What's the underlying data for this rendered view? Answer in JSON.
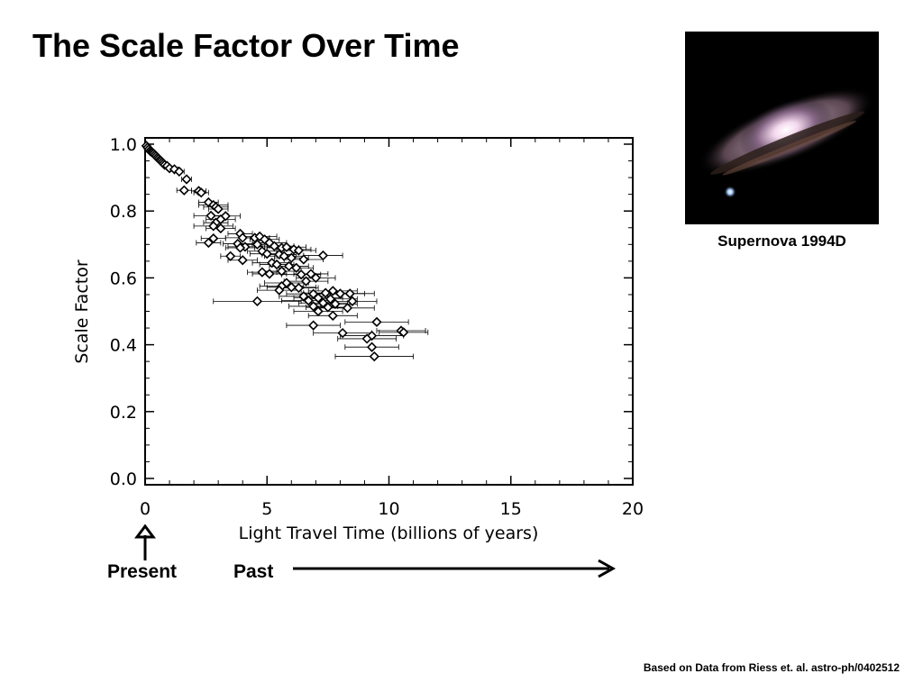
{
  "slide": {
    "title": "The Scale Factor Over Time",
    "photo_caption": "Supernova 1994D",
    "present_label": "Present",
    "past_label": "Past",
    "footer": "Based on Data from Riess et. al.  astro-ph/0402512"
  },
  "chart_data": {
    "type": "scatter",
    "title": "",
    "xlabel": "Light Travel Time (billions of years)",
    "ylabel": "Scale Factor",
    "xlim": [
      0,
      20
    ],
    "ylim": [
      0,
      1.0
    ],
    "x_ticks": [
      "0",
      "5",
      "10",
      "15",
      "20"
    ],
    "y_ticks": [
      "0.0",
      "0.2",
      "0.4",
      "0.6",
      "0.8",
      "1.0"
    ],
    "grid": false,
    "marker": "diamond",
    "points": [
      {
        "x": 0.05,
        "y": 0.995,
        "xerr": 0.02
      },
      {
        "x": 0.1,
        "y": 0.99,
        "xerr": 0.03
      },
      {
        "x": 0.15,
        "y": 0.985,
        "xerr": 0.03
      },
      {
        "x": 0.2,
        "y": 0.98,
        "xerr": 0.04
      },
      {
        "x": 0.25,
        "y": 0.977,
        "xerr": 0.04
      },
      {
        "x": 0.3,
        "y": 0.975,
        "xerr": 0.05
      },
      {
        "x": 0.35,
        "y": 0.972,
        "xerr": 0.05
      },
      {
        "x": 0.4,
        "y": 0.968,
        "xerr": 0.05
      },
      {
        "x": 0.45,
        "y": 0.964,
        "xerr": 0.06
      },
      {
        "x": 0.5,
        "y": 0.96,
        "xerr": 0.06
      },
      {
        "x": 0.55,
        "y": 0.957,
        "xerr": 0.06
      },
      {
        "x": 0.6,
        "y": 0.953,
        "xerr": 0.07
      },
      {
        "x": 0.65,
        "y": 0.95,
        "xerr": 0.07
      },
      {
        "x": 0.7,
        "y": 0.946,
        "xerr": 0.08
      },
      {
        "x": 0.75,
        "y": 0.942,
        "xerr": 0.08
      },
      {
        "x": 0.8,
        "y": 0.938,
        "xerr": 0.09
      },
      {
        "x": 0.9,
        "y": 0.935,
        "xerr": 0.1
      },
      {
        "x": 1.0,
        "y": 0.928,
        "xerr": 0.1
      },
      {
        "x": 1.2,
        "y": 0.925,
        "xerr": 0.15
      },
      {
        "x": 1.4,
        "y": 0.918,
        "xerr": 0.2
      },
      {
        "x": 1.7,
        "y": 0.895,
        "xerr": 0.2
      },
      {
        "x": 1.6,
        "y": 0.862,
        "xerr": 0.3
      },
      {
        "x": 2.2,
        "y": 0.86,
        "xerr": 0.3
      },
      {
        "x": 2.3,
        "y": 0.855,
        "xerr": 0.3
      },
      {
        "x": 2.6,
        "y": 0.826,
        "xerr": 0.4
      },
      {
        "x": 2.8,
        "y": 0.818,
        "xerr": 0.6
      },
      {
        "x": 2.9,
        "y": 0.812,
        "xerr": 0.5
      },
      {
        "x": 3.0,
        "y": 0.806,
        "xerr": 0.4
      },
      {
        "x": 2.7,
        "y": 0.786,
        "xerr": 0.7
      },
      {
        "x": 3.3,
        "y": 0.785,
        "xerr": 0.6
      },
      {
        "x": 3.1,
        "y": 0.775,
        "xerr": 0.6
      },
      {
        "x": 2.9,
        "y": 0.765,
        "xerr": 0.5
      },
      {
        "x": 2.8,
        "y": 0.755,
        "xerr": 0.8
      },
      {
        "x": 3.1,
        "y": 0.748,
        "xerr": 0.6
      },
      {
        "x": 3.9,
        "y": 0.732,
        "xerr": 0.5
      },
      {
        "x": 4.0,
        "y": 0.72,
        "xerr": 0.7
      },
      {
        "x": 2.8,
        "y": 0.718,
        "xerr": 0.5
      },
      {
        "x": 2.6,
        "y": 0.705,
        "xerr": 0.5
      },
      {
        "x": 3.8,
        "y": 0.702,
        "xerr": 0.6
      },
      {
        "x": 4.1,
        "y": 0.693,
        "xerr": 0.7
      },
      {
        "x": 3.9,
        "y": 0.69,
        "xerr": 0.6
      },
      {
        "x": 4.5,
        "y": 0.72,
        "xerr": 0.6
      },
      {
        "x": 4.7,
        "y": 0.724,
        "xerr": 0.7
      },
      {
        "x": 4.9,
        "y": 0.715,
        "xerr": 0.6
      },
      {
        "x": 5.1,
        "y": 0.705,
        "xerr": 0.7
      },
      {
        "x": 4.6,
        "y": 0.7,
        "xerr": 0.7
      },
      {
        "x": 5.3,
        "y": 0.695,
        "xerr": 0.8
      },
      {
        "x": 5.6,
        "y": 0.69,
        "xerr": 0.7
      },
      {
        "x": 5.8,
        "y": 0.692,
        "xerr": 0.8
      },
      {
        "x": 6.1,
        "y": 0.685,
        "xerr": 0.7
      },
      {
        "x": 6.3,
        "y": 0.682,
        "xerr": 0.7
      },
      {
        "x": 4.8,
        "y": 0.68,
        "xerr": 0.6
      },
      {
        "x": 5.0,
        "y": 0.672,
        "xerr": 0.7
      },
      {
        "x": 5.5,
        "y": 0.67,
        "xerr": 0.7
      },
      {
        "x": 5.7,
        "y": 0.665,
        "xerr": 0.8
      },
      {
        "x": 6.0,
        "y": 0.66,
        "xerr": 0.7
      },
      {
        "x": 6.5,
        "y": 0.655,
        "xerr": 0.8
      },
      {
        "x": 7.3,
        "y": 0.667,
        "xerr": 0.8
      },
      {
        "x": 3.5,
        "y": 0.665,
        "xerr": 0.4
      },
      {
        "x": 4.0,
        "y": 0.653,
        "xerr": 0.6
      },
      {
        "x": 5.2,
        "y": 0.645,
        "xerr": 0.8
      },
      {
        "x": 5.4,
        "y": 0.64,
        "xerr": 0.7
      },
      {
        "x": 5.9,
        "y": 0.635,
        "xerr": 0.8
      },
      {
        "x": 6.2,
        "y": 0.63,
        "xerr": 0.7
      },
      {
        "x": 5.6,
        "y": 0.62,
        "xerr": 0.8
      },
      {
        "x": 4.8,
        "y": 0.617,
        "xerr": 0.6
      },
      {
        "x": 5.1,
        "y": 0.612,
        "xerr": 0.7
      },
      {
        "x": 6.4,
        "y": 0.61,
        "xerr": 0.8
      },
      {
        "x": 6.8,
        "y": 0.612,
        "xerr": 0.7
      },
      {
        "x": 7.0,
        "y": 0.6,
        "xerr": 0.8
      },
      {
        "x": 6.6,
        "y": 0.59,
        "xerr": 0.9
      },
      {
        "x": 5.8,
        "y": 0.585,
        "xerr": 0.9
      },
      {
        "x": 5.6,
        "y": 0.575,
        "xerr": 0.9
      },
      {
        "x": 6.3,
        "y": 0.57,
        "xerr": 0.8
      },
      {
        "x": 5.5,
        "y": 0.563,
        "xerr": 0.9
      },
      {
        "x": 6.0,
        "y": 0.572,
        "xerr": 1.0
      },
      {
        "x": 7.7,
        "y": 0.561,
        "xerr": 1.0
      },
      {
        "x": 7.4,
        "y": 0.555,
        "xerr": 0.9
      },
      {
        "x": 6.9,
        "y": 0.552,
        "xerr": 1.1
      },
      {
        "x": 8.0,
        "y": 0.553,
        "xerr": 1.0
      },
      {
        "x": 8.4,
        "y": 0.553,
        "xerr": 1.0
      },
      {
        "x": 6.5,
        "y": 0.545,
        "xerr": 1.0
      },
      {
        "x": 7.1,
        "y": 0.54,
        "xerr": 1.0
      },
      {
        "x": 7.6,
        "y": 0.537,
        "xerr": 1.1
      },
      {
        "x": 8.5,
        "y": 0.53,
        "xerr": 1.0
      },
      {
        "x": 6.7,
        "y": 0.532,
        "xerr": 1.1
      },
      {
        "x": 7.3,
        "y": 0.525,
        "xerr": 1.0
      },
      {
        "x": 7.8,
        "y": 0.522,
        "xerr": 0.9
      },
      {
        "x": 6.9,
        "y": 0.515,
        "xerr": 1.0
      },
      {
        "x": 7.5,
        "y": 0.512,
        "xerr": 0.9
      },
      {
        "x": 8.3,
        "y": 0.51,
        "xerr": 1.1
      },
      {
        "x": 4.6,
        "y": 0.53,
        "xerr": 1.8
      },
      {
        "x": 7.1,
        "y": 0.5,
        "xerr": 1.0
      },
      {
        "x": 7.7,
        "y": 0.487,
        "xerr": 1.0
      },
      {
        "x": 9.5,
        "y": 0.468,
        "xerr": 1.3
      },
      {
        "x": 6.9,
        "y": 0.458,
        "xerr": 1.1
      },
      {
        "x": 8.1,
        "y": 0.435,
        "xerr": 1.2
      },
      {
        "x": 10.5,
        "y": 0.442,
        "xerr": 1.0
      },
      {
        "x": 10.6,
        "y": 0.437,
        "xerr": 1.0
      },
      {
        "x": 9.3,
        "y": 0.427,
        "xerr": 1.3
      },
      {
        "x": 9.1,
        "y": 0.418,
        "xerr": 1.2
      },
      {
        "x": 9.3,
        "y": 0.393,
        "xerr": 1.1
      },
      {
        "x": 9.4,
        "y": 0.365,
        "xerr": 1.6
      }
    ]
  }
}
